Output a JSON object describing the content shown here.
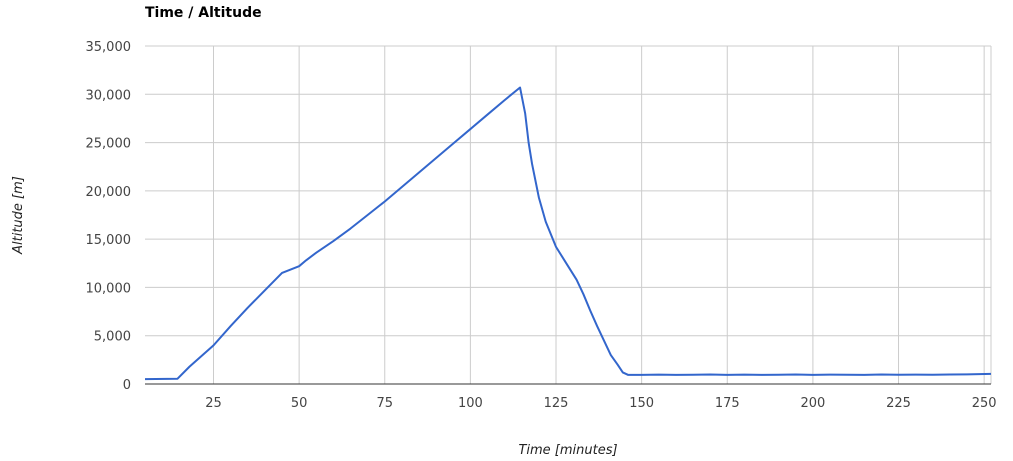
{
  "chart_data": {
    "type": "line",
    "title": "Time / Altitude",
    "xlabel": "Time [minutes]",
    "ylabel": "Altitude [m]",
    "xlim": [
      5,
      252
    ],
    "ylim": [
      0,
      35000
    ],
    "x_ticks": [
      25,
      50,
      75,
      100,
      125,
      150,
      175,
      200,
      225,
      250
    ],
    "y_ticks": [
      0,
      5000,
      10000,
      15000,
      20000,
      25000,
      30000,
      35000
    ],
    "x_tick_labels": [
      "25",
      "50",
      "75",
      "100",
      "125",
      "150",
      "175",
      "200",
      "225",
      "250"
    ],
    "y_tick_labels": [
      "0",
      "5,000",
      "10,000",
      "15,000",
      "20,000",
      "25,000",
      "30,000",
      "35,000"
    ],
    "grid": true,
    "line_color": "#3366cc",
    "series": [
      {
        "x": [
          5,
          14.5,
          18,
          25,
          30,
          35,
          40,
          45,
          50,
          52,
          55,
          60,
          65,
          70,
          75,
          80,
          85,
          90,
          95,
          100,
          105,
          110,
          114.5,
          116,
          117,
          118,
          120,
          122,
          125,
          128,
          131,
          133,
          135,
          137,
          139,
          141,
          143,
          144.5,
          146,
          150,
          155,
          160,
          165,
          170,
          175,
          180,
          185,
          190,
          195,
          200,
          205,
          210,
          215,
          220,
          225,
          230,
          235,
          240,
          245,
          252
        ],
        "y": [
          500,
          550,
          1800,
          4000,
          6000,
          7900,
          9700,
          11500,
          12200,
          12800,
          13600,
          14800,
          16100,
          17500,
          18900,
          20400,
          21900,
          23400,
          24900,
          26400,
          27900,
          29400,
          30700,
          28000,
          25000,
          22800,
          19300,
          16800,
          14200,
          12500,
          10800,
          9300,
          7600,
          6000,
          4500,
          3000,
          2000,
          1200,
          950,
          950,
          970,
          950,
          960,
          980,
          950,
          970,
          940,
          960,
          980,
          950,
          970,
          960,
          950,
          980,
          960,
          970,
          960,
          980,
          1000,
          1050
        ]
      }
    ]
  }
}
